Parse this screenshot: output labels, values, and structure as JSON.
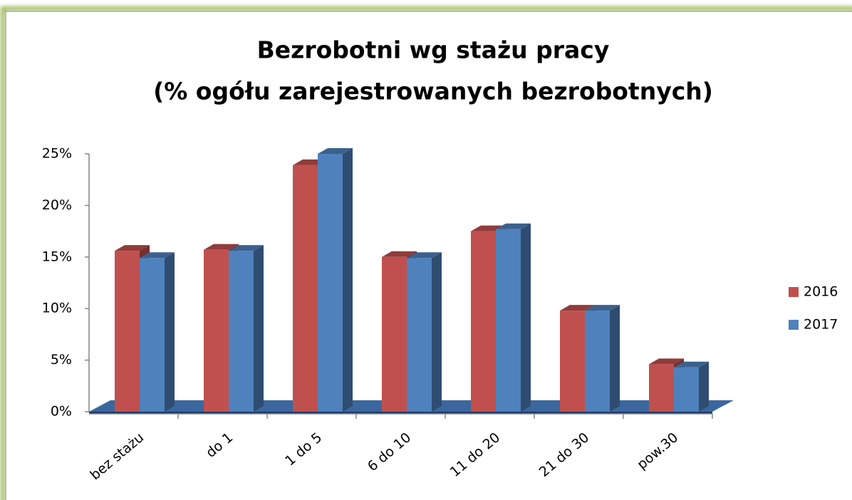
{
  "chart_data": {
    "type": "bar3d",
    "title": [
      "Bezrobotni wg stażu pracy",
      "(% ogółu zarejestrowanych bezrobotnych)"
    ],
    "categories": [
      "bez stażu",
      "do 1",
      "1 do 5",
      "6 do 10",
      "11 do 20",
      "21 do 30",
      "pow.30"
    ],
    "series": [
      {
        "name": "2016",
        "color": "#c0504d",
        "values": [
          15.6,
          15.7,
          23.9,
          15.0,
          17.5,
          9.8,
          4.6
        ]
      },
      {
        "name": "2017",
        "color": "#4f81bd",
        "values": [
          14.9,
          15.6,
          25.0,
          14.9,
          17.7,
          9.8,
          4.3
        ]
      }
    ],
    "ylim": [
      0,
      25
    ],
    "yticks": [
      {
        "value": 0,
        "label": "0%"
      },
      {
        "value": 5,
        "label": "5%"
      },
      {
        "value": 10,
        "label": "10%"
      },
      {
        "value": 15,
        "label": "15%"
      },
      {
        "value": 20,
        "label": "20%"
      },
      {
        "value": 25,
        "label": "25%"
      }
    ],
    "grid": false,
    "legend": "right"
  }
}
